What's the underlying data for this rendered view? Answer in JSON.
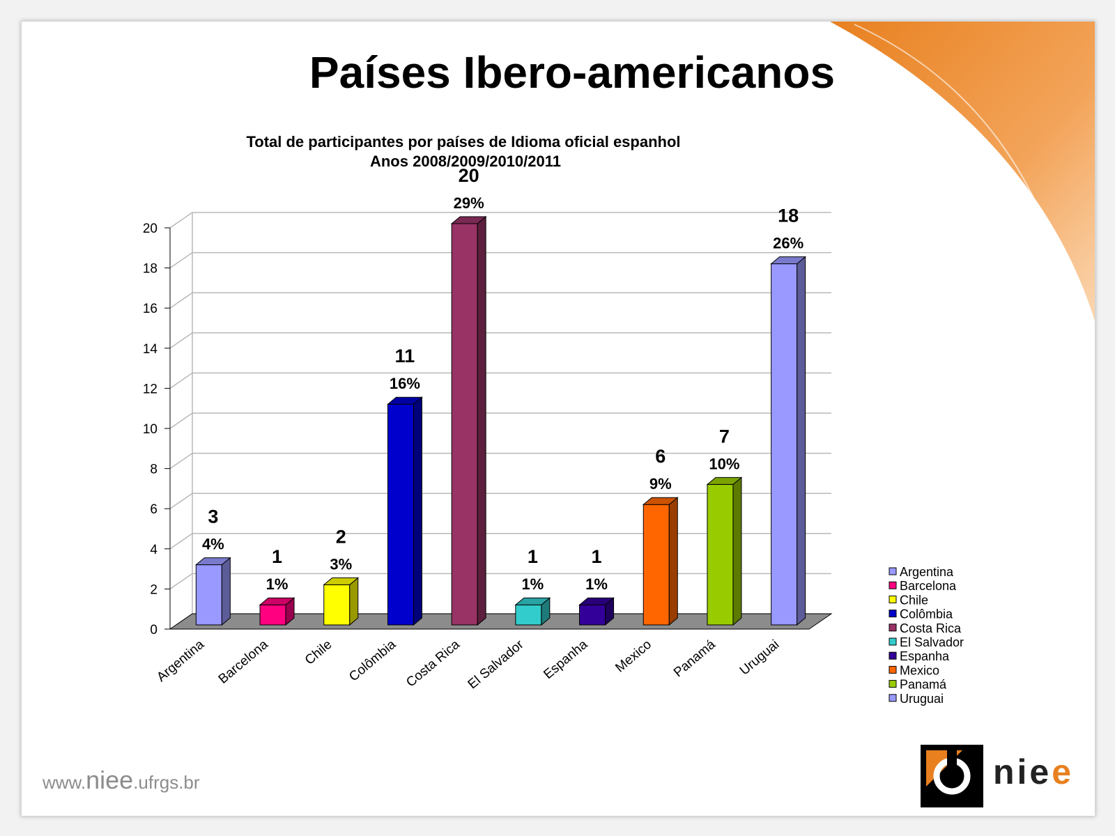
{
  "slide": {
    "title": "Países Ibero-americanos",
    "footer_prefix": "www.",
    "footer_brand": "niee",
    "footer_suffix": ".ufrgs.br",
    "logo_text_main": "nie",
    "logo_text_accent": "e"
  },
  "colors": {
    "accent_orange": "#e8801f",
    "floor": "#8c8c8c"
  },
  "chart_data": {
    "type": "bar",
    "title": "Total de participantes por países de Idioma oficial espanhol",
    "subtitle": "Anos 2008/2009/2010/2011",
    "categories": [
      "Argentina",
      "Barcelona",
      "Chile",
      "Colômbia",
      "Costa Rica",
      "El Salvador",
      "Espanha",
      "Mexico",
      "Panamá",
      "Uruguai"
    ],
    "values": [
      3,
      1,
      2,
      11,
      20,
      1,
      1,
      6,
      7,
      18
    ],
    "percent_labels": [
      "4%",
      "1%",
      "3%",
      "16%",
      "29%",
      "1%",
      "1%",
      "9%",
      "10%",
      "26%"
    ],
    "colors": [
      "#9999ff",
      "#ff0080",
      "#ffff00",
      "#0000cc",
      "#993366",
      "#33cccc",
      "#330099",
      "#ff6600",
      "#99cc00",
      "#9999ff"
    ],
    "yticks": [
      "0",
      "2",
      "4",
      "6",
      "8",
      "10",
      "12",
      "14",
      "16",
      "18",
      "20"
    ],
    "ylim": [
      0,
      20
    ],
    "legend_position": "right",
    "grid": true
  }
}
